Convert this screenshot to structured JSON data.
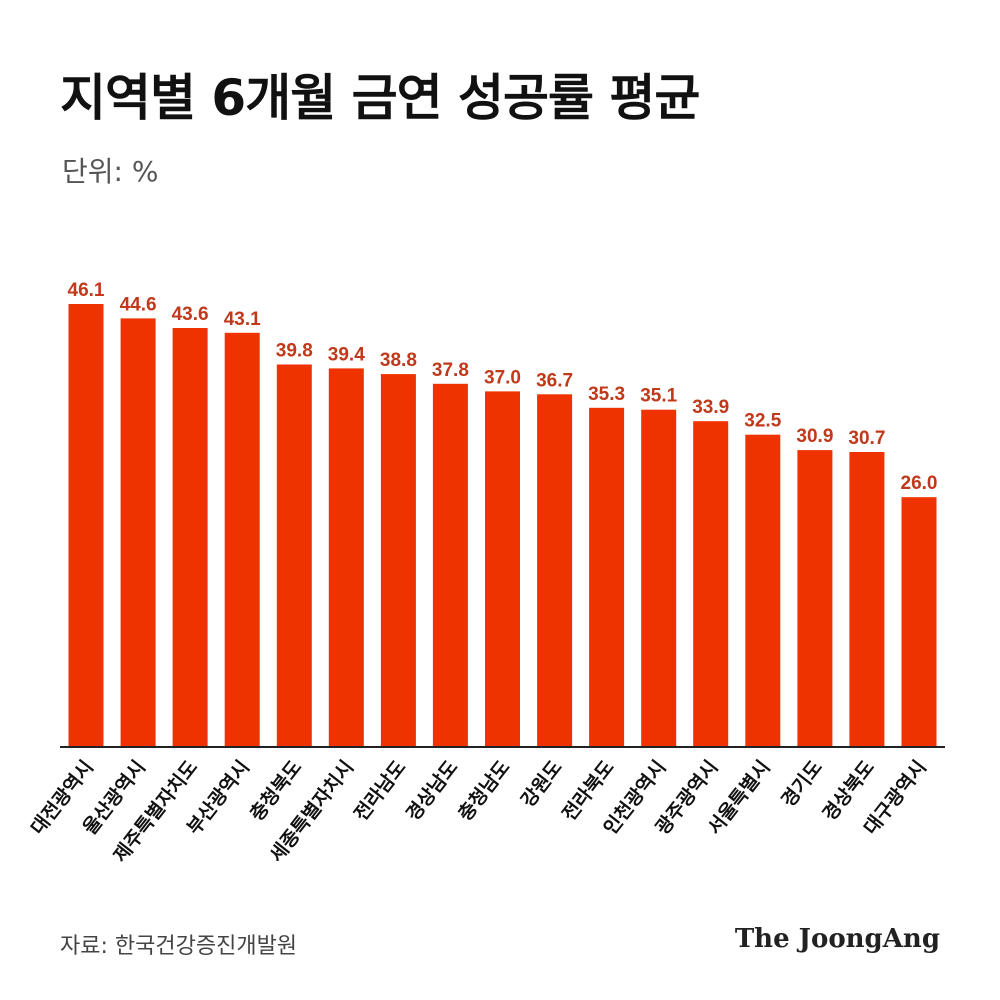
{
  "title": "지역별 6개월 금연 성공률 평균",
  "unit": "단위: %",
  "source": "자료: 한국건강증진개발원",
  "brand": "The JoongAng",
  "colors": {
    "bar": "#ee3300",
    "value_label": "#c0391b",
    "baseline": "#222222",
    "text": "#111111"
  },
  "chart_data": {
    "type": "bar",
    "categories": [
      "대전광역시",
      "울산광역시",
      "제주특별자치도",
      "부산광역시",
      "충청북도",
      "세종특별자치시",
      "전라남도",
      "경상남도",
      "충청남도",
      "강원도",
      "전라북도",
      "인천광역시",
      "광주광역시",
      "서울특별시",
      "경기도",
      "경상북도",
      "대구광역시"
    ],
    "values": [
      46.1,
      44.6,
      43.6,
      43.1,
      39.8,
      39.4,
      38.8,
      37.8,
      37.0,
      36.7,
      35.3,
      35.1,
      33.9,
      32.5,
      30.9,
      30.7,
      26.0
    ],
    "value_labels": [
      "46.1",
      "44.6",
      "43.6",
      "43.1",
      "39.8",
      "39.4",
      "38.8",
      "37.8",
      "37.0",
      "36.7",
      "35.3",
      "35.1",
      "33.9",
      "32.5",
      "30.9",
      "30.7",
      "26.0"
    ],
    "ylim": [
      0,
      46.1
    ],
    "grid": false,
    "legend": "none",
    "xlabel": "",
    "ylabel": ""
  }
}
